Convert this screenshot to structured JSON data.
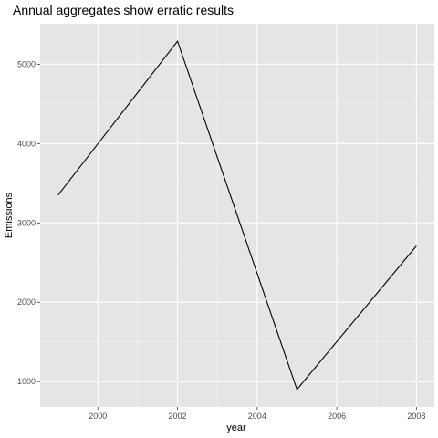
{
  "colors": {
    "panel_background": "#e5e5e5",
    "grid_major": "#ffffff",
    "grid_minor": "#f2f2f2",
    "line": "#000000",
    "tick_text": "#4d4d4d"
  },
  "chart_data": {
    "type": "line",
    "title": "Annual aggregates show erratic results",
    "xlabel": "year",
    "ylabel": "Emissions",
    "xlim": [
      1999,
      2008
    ],
    "ylim": [
      900,
      5300
    ],
    "x_ticks": [
      2000,
      2002,
      2004,
      2006,
      2008
    ],
    "y_ticks": [
      1000,
      2000,
      3000,
      4000,
      5000
    ],
    "grid": true,
    "legend": "none",
    "x": [
      1999,
      2002,
      2005,
      2008
    ],
    "y": [
      3350,
      5290,
      900,
      2710
    ]
  }
}
